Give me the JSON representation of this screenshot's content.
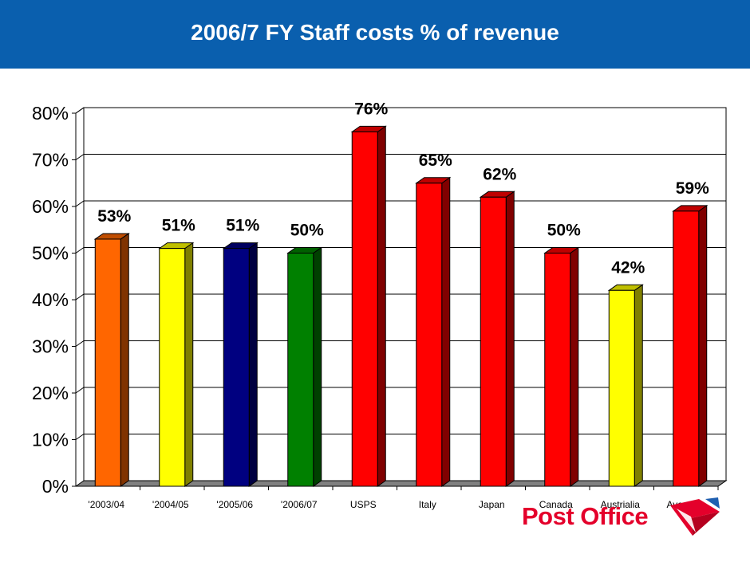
{
  "header": {
    "title": "2006/7 FY Staff costs % of revenue"
  },
  "colors": {
    "header_bg": "#0a5fae",
    "orange": "#ff6600",
    "yellow": "#ffff00",
    "navy": "#000080",
    "green": "#008000",
    "red": "#ff0000",
    "logo_red": "#e4002b"
  },
  "logo": {
    "text": "Post Office",
    "icon": "post-office-envelope-logo"
  },
  "chart_data": {
    "type": "bar",
    "categories": [
      "'2003/04",
      "'2004/05",
      "'2005/06",
      "'2006/07",
      "USPS",
      "Italy",
      "Japan",
      "Canada",
      "Austrialia",
      "Average"
    ],
    "values": [
      53,
      51,
      51,
      50,
      76,
      65,
      62,
      50,
      42,
      59
    ],
    "data_labels": [
      "53%",
      "51%",
      "51%",
      "50%",
      "76%",
      "65%",
      "62%",
      "50%",
      "42%",
      "59%"
    ],
    "bar_colors": [
      "#ff6600",
      "#ffff00",
      "#000080",
      "#008000",
      "#ff0000",
      "#ff0000",
      "#ff0000",
      "#ff0000",
      "#ffff00",
      "#ff0000"
    ],
    "y_ticks": [
      "0%",
      "10%",
      "20%",
      "30%",
      "40%",
      "50%",
      "60%",
      "70%",
      "80%"
    ],
    "ylim": [
      0,
      80
    ],
    "style": "3d",
    "grid": true,
    "legend": "none"
  }
}
